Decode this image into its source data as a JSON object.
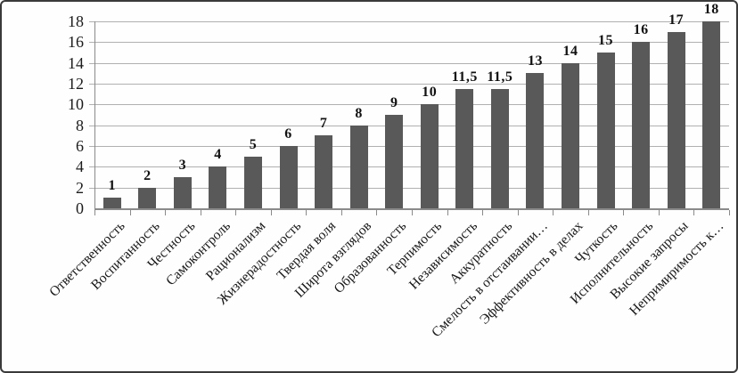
{
  "chart_data": {
    "type": "bar",
    "title": "",
    "xlabel": "",
    "ylabel": "",
    "categories": [
      "Ответственность",
      "Воспитанность",
      "Честность",
      "Самоконтроль",
      "Рационализм",
      "Жизнерадостность",
      "Твердая воля",
      "Широта взглядов",
      "Образованность",
      "Терпимость",
      "Независимость",
      "Аккуратность",
      "Смелость в отстаивании…",
      "Эффективность в делах",
      "Чуткость",
      "Исполнительность",
      "Высокие запросы",
      "Непримиримость к…"
    ],
    "values": [
      1,
      2,
      3,
      4,
      5,
      6,
      7,
      8,
      9,
      10,
      11.5,
      11.5,
      13,
      14,
      15,
      16,
      17,
      18
    ],
    "value_labels": [
      "1",
      "2",
      "3",
      "4",
      "5",
      "6",
      "7",
      "8",
      "9",
      "10",
      "11,5",
      "11,5",
      "13",
      "14",
      "15",
      "16",
      "17",
      "18"
    ],
    "yticks": [
      0,
      2,
      4,
      6,
      8,
      10,
      12,
      14,
      16,
      18
    ],
    "ylim": [
      0,
      18
    ],
    "grid": true,
    "legend": false,
    "bar_color": "#595959",
    "gridline_color": "#b0b0b0",
    "axis_color": "#8a8a8a",
    "text_color": "#161616"
  }
}
